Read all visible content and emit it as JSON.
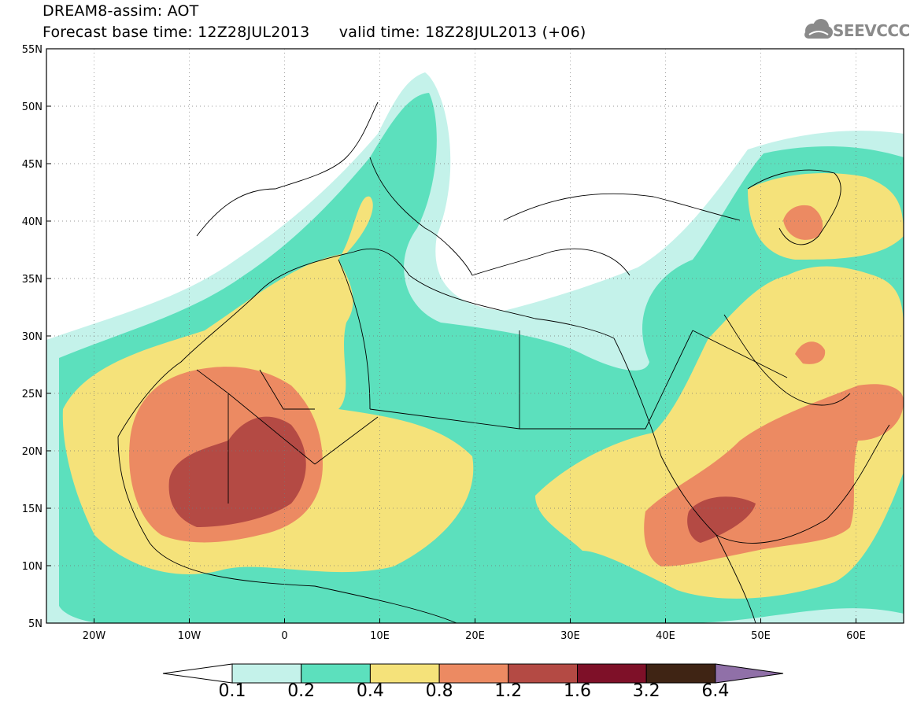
{
  "header": {
    "title": "DREAM8-assim: AOT",
    "base_time_label": "Forecast base time: 12Z28JUL2013",
    "valid_time_label": "valid time: 18Z28JUL2013 (+06)",
    "logo_text": "SEEVCCC"
  },
  "map": {
    "lat_labels": [
      "55N",
      "50N",
      "45N",
      "40N",
      "35N",
      "30N",
      "25N",
      "20N",
      "15N",
      "10N",
      "5N"
    ],
    "lon_labels": [
      "20W",
      "10W",
      "0",
      "10E",
      "20E",
      "30E",
      "40E",
      "50E",
      "60E"
    ],
    "lon_range": [
      -25,
      65
    ],
    "lat_range": [
      5,
      55
    ]
  },
  "colorbar": {
    "levels": [
      "0.1",
      "0.2",
      "0.4",
      "0.8",
      "1.2",
      "1.6",
      "3.2",
      "6.4"
    ],
    "colors": {
      "c01": "#c4f2ea",
      "c02": "#5ce0bd",
      "c04": "#f5e27a",
      "c08": "#ec8a62",
      "c12": "#b44a44",
      "c16": "#7e1028",
      "c32": "#3f2414",
      "c64": "#9070a8"
    }
  }
}
